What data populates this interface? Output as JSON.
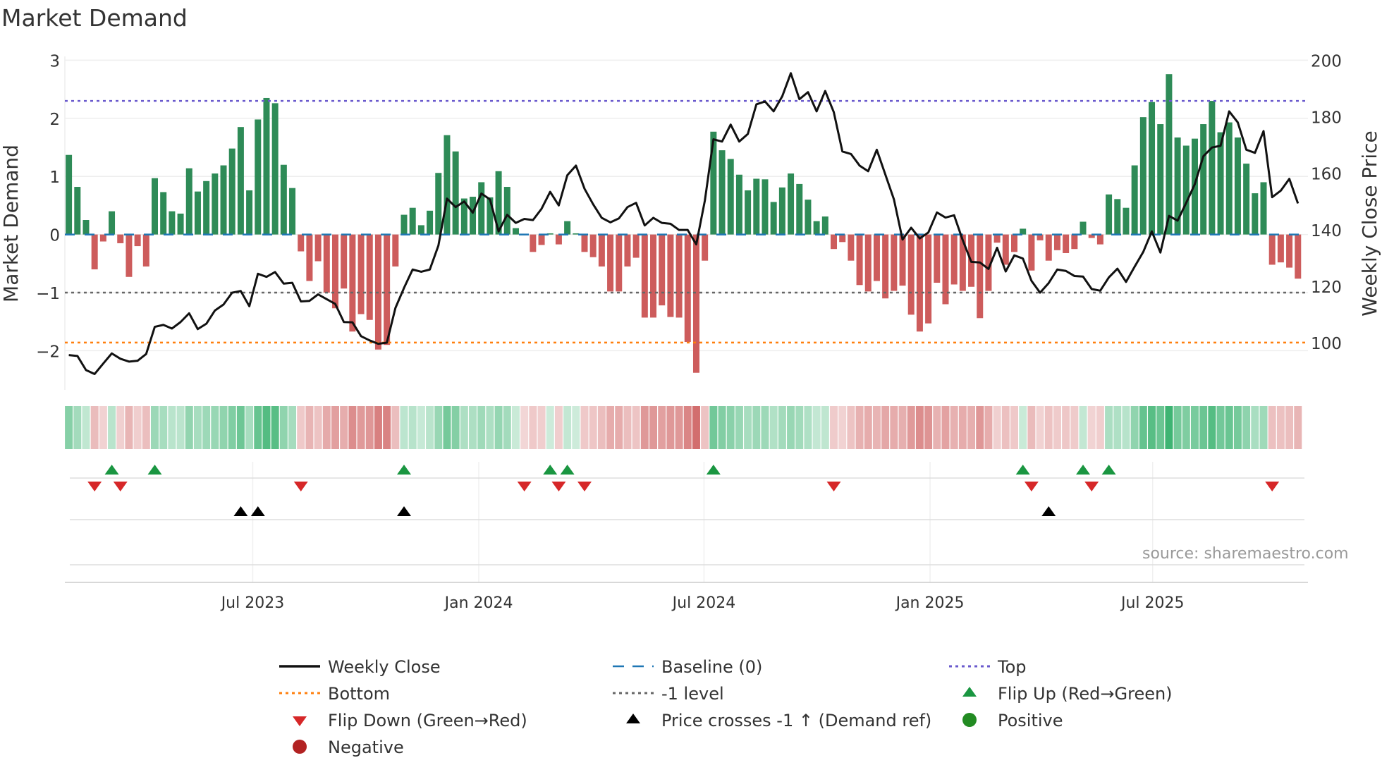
{
  "chart_data": {
    "type": "bar",
    "title": "Market Demand",
    "ylabel": "Market Demand",
    "y2label": "Weekly Close Price",
    "ylim": [
      -2.6,
      3.0
    ],
    "y2lim": [
      100,
      200
    ],
    "yticks": [
      "3",
      "2",
      "1",
      "0",
      "−2"
    ],
    "yticks_values": [
      3,
      2,
      1,
      0,
      -2
    ],
    "yticks_extra": {
      "label": "−1",
      "value": -1
    },
    "y2ticks": [
      200,
      180,
      160,
      140,
      120,
      100
    ],
    "x_unit": "week index (weekly bars)",
    "xticks": [
      {
        "label": "Jul 2023",
        "week": 21.4
      },
      {
        "label": "Jan 2024",
        "week": 47.7
      },
      {
        "label": "Jul 2024",
        "week": 73.9
      },
      {
        "label": "Jan 2025",
        "week": 100.2
      },
      {
        "label": "Jul 2025",
        "week": 126.1
      }
    ],
    "grid": true,
    "levels": {
      "top": 2.3,
      "bottom": -1.86,
      "minus_one": -1,
      "baseline": 0
    },
    "demand": [
      1.37,
      0.82,
      0.25,
      -0.6,
      -0.12,
      0.4,
      -0.15,
      -0.73,
      -0.2,
      -0.55,
      0.97,
      0.73,
      0.4,
      0.36,
      1.14,
      0.74,
      0.92,
      1.05,
      1.19,
      1.48,
      1.85,
      0.76,
      1.98,
      2.35,
      2.26,
      1.2,
      0.8,
      -0.29,
      -0.8,
      -0.46,
      -1.0,
      -1.27,
      -0.93,
      -1.67,
      -1.37,
      -1.47,
      -1.98,
      -1.9,
      -0.55,
      0.34,
      0.46,
      0.16,
      0.41,
      1.06,
      1.71,
      1.43,
      0.62,
      0.65,
      0.9,
      0.64,
      1.09,
      0.82,
      0.11,
      -0.01,
      -0.3,
      -0.18,
      0.02,
      -0.17,
      0.23,
      0.02,
      -0.3,
      -0.39,
      -0.55,
      -0.98,
      -0.98,
      -0.55,
      -0.4,
      -1.43,
      -1.43,
      -1.22,
      -1.42,
      -1.43,
      -1.85,
      -2.38,
      -0.45,
      1.77,
      1.45,
      1.3,
      1.03,
      0.76,
      0.96,
      0.95,
      0.56,
      0.81,
      1.05,
      0.87,
      0.6,
      0.23,
      0.31,
      -0.25,
      -0.13,
      -0.45,
      -0.87,
      -0.98,
      -0.8,
      -1.1,
      -0.97,
      -0.88,
      -1.38,
      -1.67,
      -1.53,
      -0.83,
      -1.2,
      -0.86,
      -0.97,
      -0.9,
      -1.44,
      -0.97,
      -0.14,
      -0.52,
      -0.3,
      0.1,
      -0.62,
      -0.1,
      -0.45,
      -0.27,
      -0.32,
      -0.25,
      0.22,
      -0.06,
      -0.17,
      0.69,
      0.61,
      0.46,
      1.19,
      2.02,
      2.28,
      1.9,
      2.76,
      1.67,
      1.53,
      1.65,
      1.9,
      2.3,
      1.76,
      1.93,
      1.67,
      1.22,
      0.71,
      0.9,
      -0.52,
      -0.48,
      -0.57,
      -0.76
    ],
    "weekly_close": [
      95.6,
      95.3,
      90.3,
      88.9,
      92.6,
      96.2,
      94.3,
      93.3,
      93.6,
      96,
      105.6,
      106.3,
      105,
      107.3,
      110.4,
      104.8,
      106.7,
      111.4,
      113.5,
      117.7,
      118.3,
      112.9,
      124.4,
      123.3,
      125,
      120.9,
      121.2,
      114.6,
      114.8,
      117.1,
      115.4,
      113.7,
      107.3,
      107.2,
      102.3,
      100.8,
      99.6,
      100,
      112.3,
      119.4,
      125.9,
      125.1,
      125.9,
      134.4,
      151,
      148,
      150,
      146,
      152.8,
      150.7,
      139.4,
      145.3,
      142.4,
      143.8,
      143.4,
      147.4,
      153.4,
      148.6,
      159.3,
      162.7,
      154.5,
      149,
      144.2,
      142.6,
      144,
      148,
      149.5,
      141.5,
      144.2,
      142.4,
      142.1,
      139.9,
      139.9,
      134.8,
      150.3,
      172,
      171.2,
      177.2,
      171.2,
      173.9,
      184.4,
      185.4,
      181.9,
      187.2,
      195.4,
      186.2,
      188.7,
      181.9,
      189.1,
      181.6,
      167.7,
      166.8,
      162.7,
      160.7,
      168.3,
      159.5,
      150.7,
      136.5,
      140.7,
      136.9,
      139,
      146.1,
      144.3,
      145.1,
      136.3,
      128.6,
      128.4,
      126.1,
      133.6,
      125.2,
      130.9,
      129.8,
      121.9,
      117.7,
      121.1,
      125.9,
      125.4,
      123.6,
      123.4,
      119,
      118.4,
      123.1,
      126.2,
      121.5,
      126.9,
      132.1,
      139.4,
      131.9,
      144.9,
      143.2,
      149.5,
      156.1,
      166,
      169.1,
      169.7,
      181.9,
      178,
      168.3,
      167.2,
      174.9,
      151.5,
      153.8,
      158,
      149.3
    ],
    "flip_up_weeks": [
      5,
      10,
      39,
      56,
      58,
      75,
      111,
      118,
      121
    ],
    "flip_down_weeks": [
      3,
      6,
      27,
      53,
      57,
      60,
      89,
      112,
      119,
      140
    ],
    "price_cross_weeks": [
      20,
      22,
      39,
      114
    ],
    "colors": {
      "positive": "#2e8b57",
      "negative": "#cd5c5c",
      "close": "#111111",
      "baseline": "#1f77b4",
      "top": "#6a5acd",
      "bottom": "#ff7f0e",
      "minus_one": "#666666",
      "flip_up": "#1a9641",
      "flip_down": "#d62728",
      "cross": "#000000",
      "pos_dot": "#228b22",
      "neg_dot": "#b22222"
    },
    "legend": [
      {
        "key": "close",
        "label": "Weekly Close",
        "kind": "line"
      },
      {
        "key": "baseline",
        "label": "Baseline (0)",
        "kind": "dash"
      },
      {
        "key": "top",
        "label": "Top",
        "kind": "dot"
      },
      {
        "key": "bottom",
        "label": "Bottom",
        "kind": "dot"
      },
      {
        "key": "minus_one",
        "label": "-1 level",
        "kind": "dot"
      },
      {
        "key": "flip_up",
        "label": "Flip Up (Red→Green)",
        "kind": "up"
      },
      {
        "key": "flip_down",
        "label": "Flip Down (Green→Red)",
        "kind": "down"
      },
      {
        "key": "cross",
        "label": "Price crosses -1 ↑ (Demand ref)",
        "kind": "up"
      },
      {
        "key": "pos_dot",
        "label": "Positive",
        "kind": "circle"
      },
      {
        "key": "neg_dot",
        "label": "Negative",
        "kind": "circle"
      }
    ],
    "legend_placement": "bottom",
    "source": "source: sharemaestro.com"
  }
}
